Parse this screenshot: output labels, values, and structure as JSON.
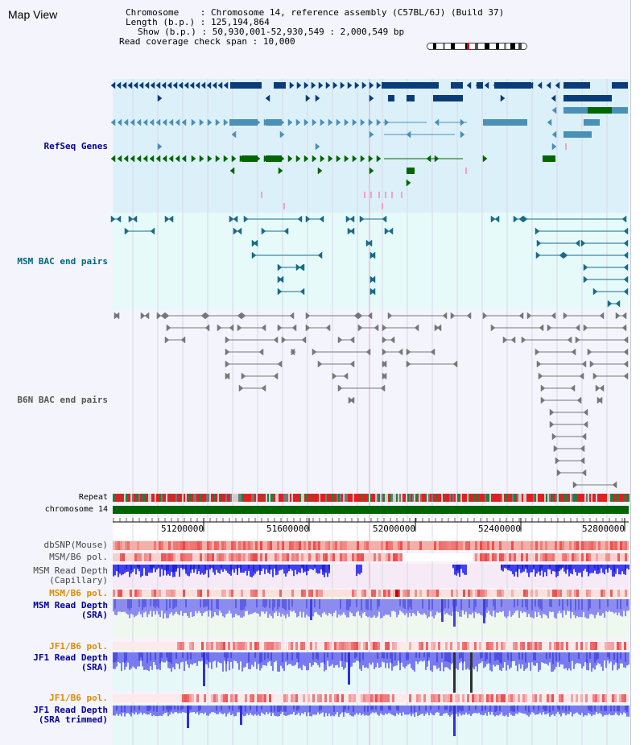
{
  "title": "Map View",
  "header": {
    "chromosome_key": "Chromosome",
    "chromosome_val": "Chromosome 14, reference assembly (C57BL/6J) (Build 37)",
    "length_key": "Length (b.p.)",
    "length_val": "125,194,864",
    "show_key": "Show (b.p.)",
    "show_val": "50,930,001-52,930,549 : 2,000,549 bp",
    "coverage_key": "Read coverage check span",
    "coverage_val": "10,000"
  },
  "ruler": {
    "ticks": [
      "51200000",
      "51600000",
      "52000000",
      "52400000",
      "52800000"
    ]
  },
  "tracks": {
    "refseq": "RefSeq Genes",
    "msm_bac": "MSM BAC end pairs",
    "b6n_bac": "B6N BAC end pairs",
    "repeat": "Repeat",
    "chromosome": "chromosome 14",
    "dbsnp": "dbSNP(Mouse)",
    "msm_b6_pol_1": "MSM/B6 pol.",
    "msm_depth_cap_1": "MSM Read Depth",
    "msm_depth_cap_2": "(Capillary)",
    "msm_b6_pol_2": "MSM/B6 pol.",
    "msm_depth_sra_1": "MSM Read Depth",
    "msm_depth_sra_2": "(SRA)",
    "jf1_b6_pol_1": "JF1/B6 pol.",
    "jf1_depth_sra_1": "JF1 Read Depth",
    "jf1_depth_sra_2": "(SRA)",
    "jf1_b6_pol_2": "JF1/B6 pol.",
    "jf1_depth_trim_1": "JF1 Read Depth",
    "jf1_depth_trim_2": "(SRA trimmed)"
  },
  "colors": {
    "refseq_bg": "#dcf0fa",
    "msm_bac_bg": "#e6fafa",
    "b6n_bac_bg": "#f4f4fc",
    "gene_navy": "#0a3c78",
    "gene_mid": "#4a90b8",
    "gene_green": "#006600",
    "bac_teal": "#1a6a8a",
    "bac_gray": "#777777",
    "chromosome_bar": "#006400",
    "snp_red": "#f08080",
    "depth_blue": "#3030e8",
    "depth_light": "#8c8cf0",
    "label_navy": "#000099",
    "label_teal": "#006680",
    "label_orange": "#e08a00"
  }
}
